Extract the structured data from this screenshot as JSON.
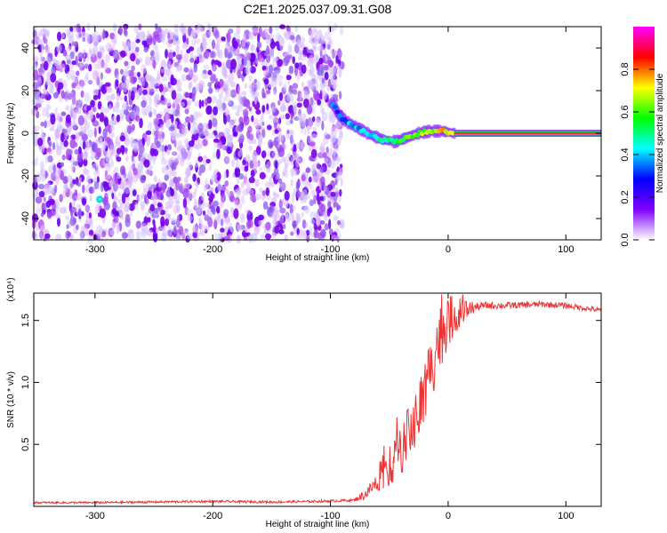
{
  "title": "C2E1.2025.037.09.31.G08",
  "chart_data": [
    {
      "type": "heatmap",
      "xlabel": "Height of straight line (km)",
      "ylabel": "Frequency (Hz)",
      "xlim": [
        -352,
        130
      ],
      "ylim": [
        -50,
        50
      ],
      "xticks": [
        -300,
        -200,
        -100,
        0,
        100
      ],
      "yticks": [
        -40,
        -20,
        0,
        20,
        40
      ],
      "xtick_labels": [
        "-300",
        "-200",
        "-100",
        "0",
        "100"
      ],
      "ytick_labels": [
        "-40",
        "-20",
        "0",
        "20",
        "40"
      ],
      "noise_region_x": [
        -352,
        -90
      ],
      "signal_track": [
        {
          "x": -98,
          "y": 14
        },
        {
          "x": -92,
          "y": 8
        },
        {
          "x": -85,
          "y": 5
        },
        {
          "x": -75,
          "y": 2
        },
        {
          "x": -65,
          "y": -1
        },
        {
          "x": -55,
          "y": -3
        },
        {
          "x": -45,
          "y": -4
        },
        {
          "x": -35,
          "y": -2
        },
        {
          "x": -25,
          "y": 0
        },
        {
          "x": -15,
          "y": 1
        },
        {
          "x": -5,
          "y": 1
        },
        {
          "x": 5,
          "y": 0
        },
        {
          "x": 130,
          "y": 0
        }
      ],
      "noise_outlier": {
        "x": -296,
        "y": -31
      },
      "colorbar": {
        "label": "Normalized spectral amplitude",
        "range": [
          0,
          1
        ],
        "ticks": [
          0.0,
          0.2,
          0.4,
          0.6,
          0.8
        ],
        "tick_labels": [
          "0.0",
          "0.2",
          "0.4",
          "0.6",
          "0.8"
        ],
        "colors": [
          "#ffffff",
          "#8000ff",
          "#0000ff",
          "#00ffff",
          "#00ff00",
          "#ffff00",
          "#ff0000",
          "#ff00ff"
        ]
      }
    },
    {
      "type": "line",
      "xlabel": "Height of straight line (km)",
      "ylabel": "SNR (10 * v/v)",
      "y_multiplier": "(x10⁴)",
      "xlim": [
        -352,
        130
      ],
      "ylim": [
        0,
        1.72
      ],
      "xticks": [
        -300,
        -200,
        -100,
        0,
        100
      ],
      "yticks": [
        0.5,
        1.0,
        1.5
      ],
      "xtick_labels": [
        "-300",
        "-200",
        "-100",
        "0",
        "100"
      ],
      "ytick_labels": [
        "0.5",
        "1.0",
        "1.5"
      ],
      "series": [
        {
          "color": "#ee3333",
          "x": [
            -352,
            -300,
            -200,
            -150,
            -110,
            -80,
            -70,
            -60,
            -50,
            -40,
            -30,
            -20,
            -15,
            -10,
            0,
            10,
            20,
            30,
            50,
            80,
            100,
            130
          ],
          "y": [
            0.03,
            0.03,
            0.04,
            0.035,
            0.04,
            0.05,
            0.1,
            0.2,
            0.3,
            0.45,
            0.65,
            0.9,
            1.1,
            1.3,
            1.5,
            1.56,
            1.6,
            1.62,
            1.62,
            1.63,
            1.62,
            1.58
          ]
        }
      ],
      "noise_amplitude": [
        {
          "x": -352,
          "a": 0.008
        },
        {
          "x": -80,
          "a": 0.01
        },
        {
          "x": -60,
          "a": 0.08
        },
        {
          "x": -40,
          "a": 0.2
        },
        {
          "x": -20,
          "a": 0.3
        },
        {
          "x": -10,
          "a": 0.3
        },
        {
          "x": 10,
          "a": 0.12
        },
        {
          "x": 25,
          "a": 0.03
        },
        {
          "x": 130,
          "a": 0.02
        }
      ]
    }
  ]
}
